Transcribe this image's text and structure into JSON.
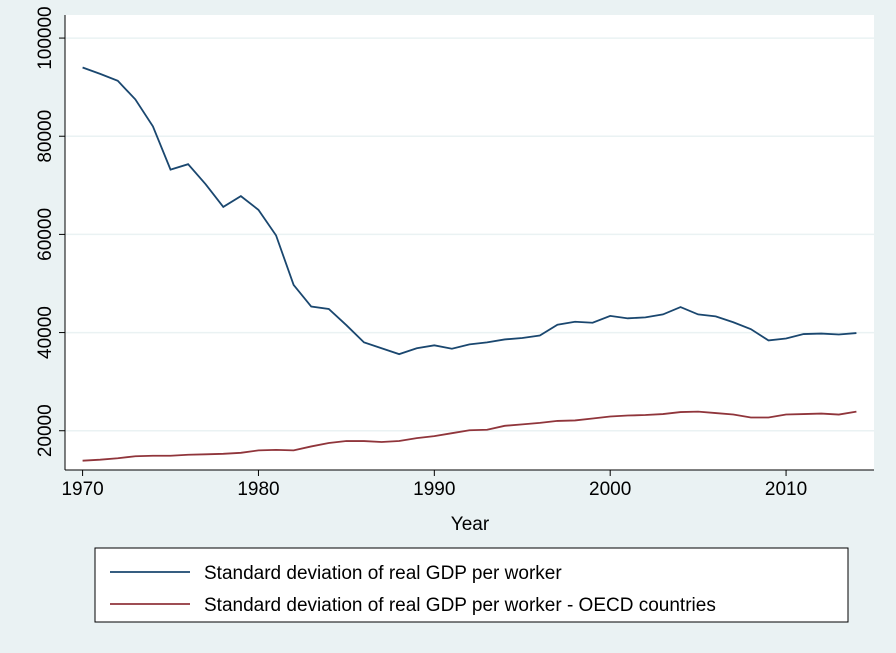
{
  "chart_data": {
    "type": "line",
    "x_label": "Year",
    "x": [
      1970,
      1971,
      1972,
      1973,
      1974,
      1975,
      1976,
      1977,
      1978,
      1979,
      1980,
      1981,
      1982,
      1983,
      1984,
      1985,
      1986,
      1987,
      1988,
      1989,
      1990,
      1991,
      1992,
      1993,
      1994,
      1995,
      1996,
      1997,
      1998,
      1999,
      2000,
      2001,
      2002,
      2003,
      2004,
      2005,
      2006,
      2007,
      2008,
      2009,
      2010,
      2011,
      2012,
      2013,
      2014
    ],
    "series": [
      {
        "name": "Standard deviation of real GDP per worker",
        "color": "#1a476f",
        "values": [
          94000,
          92700,
          91300,
          87500,
          82000,
          73200,
          74300,
          70200,
          65600,
          67800,
          65000,
          59800,
          49700,
          45300,
          44800,
          41500,
          38000,
          36800,
          35600,
          36800,
          37400,
          36700,
          37600,
          38000,
          38600,
          38900,
          39400,
          41600,
          42200,
          42000,
          43400,
          42900,
          43100,
          43700,
          45200,
          43700,
          43300,
          42100,
          40700,
          38400,
          38800,
          39700,
          39800,
          39600,
          39900
        ]
      },
      {
        "name": "Standard deviation of real GDP per worker - OECD countries",
        "color": "#90353b",
        "values": [
          13900,
          14100,
          14400,
          14800,
          14900,
          14900,
          15100,
          15200,
          15300,
          15500,
          16000,
          16100,
          16000,
          16800,
          17500,
          17900,
          17900,
          17700,
          17900,
          18500,
          18900,
          19500,
          20100,
          20200,
          21000,
          21300,
          21600,
          22000,
          22100,
          22500,
          22900,
          23100,
          23200,
          23400,
          23800,
          23900,
          23600,
          23300,
          22700,
          22700,
          23300,
          23400,
          23500,
          23300,
          23900
        ]
      }
    ],
    "xlim": [
      1969,
      2015
    ],
    "xticks": [
      1970,
      1980,
      1990,
      2000,
      2010
    ],
    "ylim": [
      12000,
      104700
    ],
    "yticks": [
      20000,
      40000,
      60000,
      80000,
      100000
    ],
    "grid": true,
    "legend": "bottom"
  }
}
